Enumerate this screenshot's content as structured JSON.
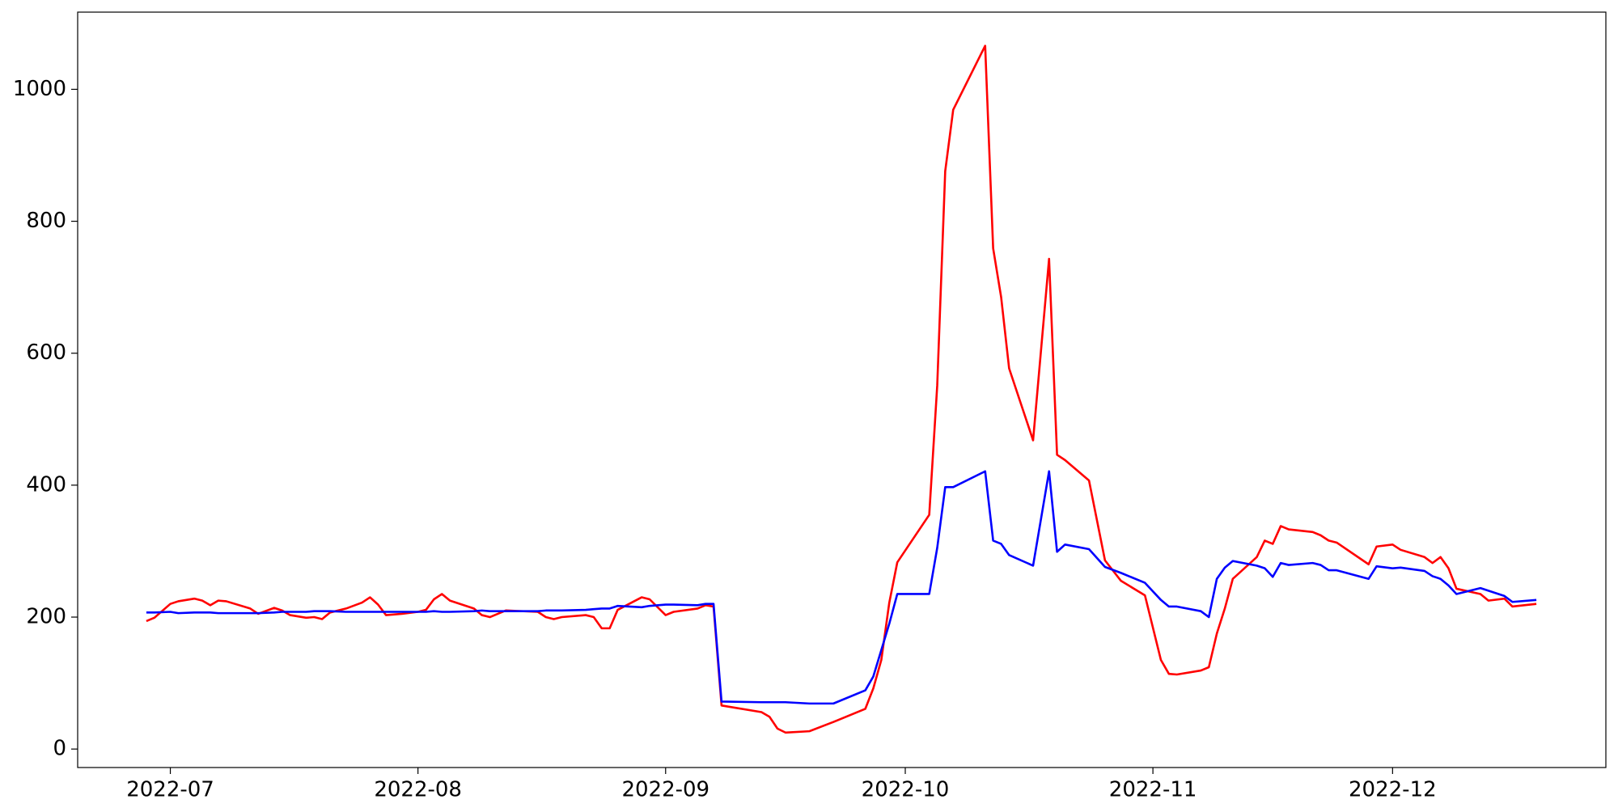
{
  "chart_data": {
    "type": "line",
    "x": [
      -3,
      -2,
      0,
      1,
      3,
      4,
      5,
      6,
      7,
      10,
      11,
      13,
      14,
      15,
      17,
      18,
      19,
      20,
      22,
      24,
      25,
      26,
      27,
      29,
      31,
      32,
      33,
      34,
      35,
      38,
      39,
      40,
      42,
      46,
      47,
      48,
      49,
      52,
      53,
      54,
      55,
      56,
      59,
      60,
      62,
      63,
      66,
      67,
      68,
      69,
      74,
      75,
      76,
      77,
      80,
      83,
      87,
      88,
      89,
      90,
      91,
      95,
      96,
      97,
      98,
      102,
      103,
      104,
      105,
      108,
      110,
      111,
      112,
      115,
      117,
      119,
      122,
      124,
      125,
      126,
      129,
      130,
      131,
      132,
      133,
      136,
      137,
      138,
      139,
      140,
      143,
      144,
      145,
      146,
      150,
      151,
      153,
      154,
      157,
      158,
      159,
      160,
      161,
      164,
      165,
      167,
      168,
      171
    ],
    "series": [
      {
        "color": "#ff0000",
        "values": [
          194,
          199,
          220,
          224,
          228,
          225,
          218,
          225,
          224,
          213,
          205,
          214,
          210,
          203,
          199,
          200,
          197,
          207,
          213,
          222,
          230,
          219,
          203,
          205,
          208,
          211,
          227,
          235,
          225,
          213,
          203,
          200,
          210,
          208,
          200,
          197,
          200,
          203,
          200,
          183,
          183,
          211,
          230,
          227,
          203,
          208,
          213,
          218,
          216,
          66,
          56,
          49,
          31,
          25,
          27,
          41,
          61,
          92,
          135,
          222,
          283,
          355,
          551,
          876,
          969,
          1066,
          759,
          685,
          577,
          468,
          743,
          446,
          438,
          407,
          286,
          255,
          233,
          135,
          114,
          113,
          119,
          124,
          175,
          213,
          258,
          291,
          316,
          311,
          338,
          333,
          329,
          324,
          316,
          313,
          280,
          307,
          310,
          302,
          291,
          282,
          291,
          274,
          243,
          235,
          225,
          228,
          216,
          220
        ]
      },
      {
        "color": "#0000ff",
        "values": [
          207,
          207,
          208,
          206,
          207,
          207,
          207,
          206,
          206,
          206,
          206,
          207,
          208,
          208,
          208,
          209,
          209,
          209,
          208,
          208,
          208,
          208,
          208,
          208,
          208,
          208,
          209,
          208,
          208,
          209,
          210,
          209,
          209,
          209,
          210,
          210,
          210,
          211,
          212,
          213,
          213,
          217,
          215,
          217,
          219,
          219,
          218,
          220,
          220,
          72,
          71,
          71,
          71,
          71,
          69,
          69,
          89,
          110,
          150,
          190,
          235,
          235,
          305,
          397,
          397,
          421,
          316,
          311,
          294,
          278,
          421,
          299,
          310,
          303,
          276,
          267,
          252,
          226,
          216,
          216,
          209,
          200,
          258,
          275,
          285,
          278,
          274,
          261,
          282,
          279,
          282,
          279,
          271,
          271,
          258,
          277,
          274,
          275,
          270,
          262,
          258,
          248,
          235,
          244,
          240,
          232,
          223,
          226
        ]
      }
    ],
    "xlim": [
      -11.6,
      179.7
    ],
    "xticks": [
      {
        "value": 0,
        "label": "2022-07"
      },
      {
        "value": 31,
        "label": "2022-08"
      },
      {
        "value": 62,
        "label": "2022-09"
      },
      {
        "value": 92,
        "label": "2022-10"
      },
      {
        "value": 123,
        "label": "2022-11"
      },
      {
        "value": 153,
        "label": "2022-12"
      }
    ],
    "ylim": [
      -28,
      1117
    ],
    "yticks": [
      0,
      200,
      400,
      600,
      800,
      1000
    ],
    "grid": false
  }
}
